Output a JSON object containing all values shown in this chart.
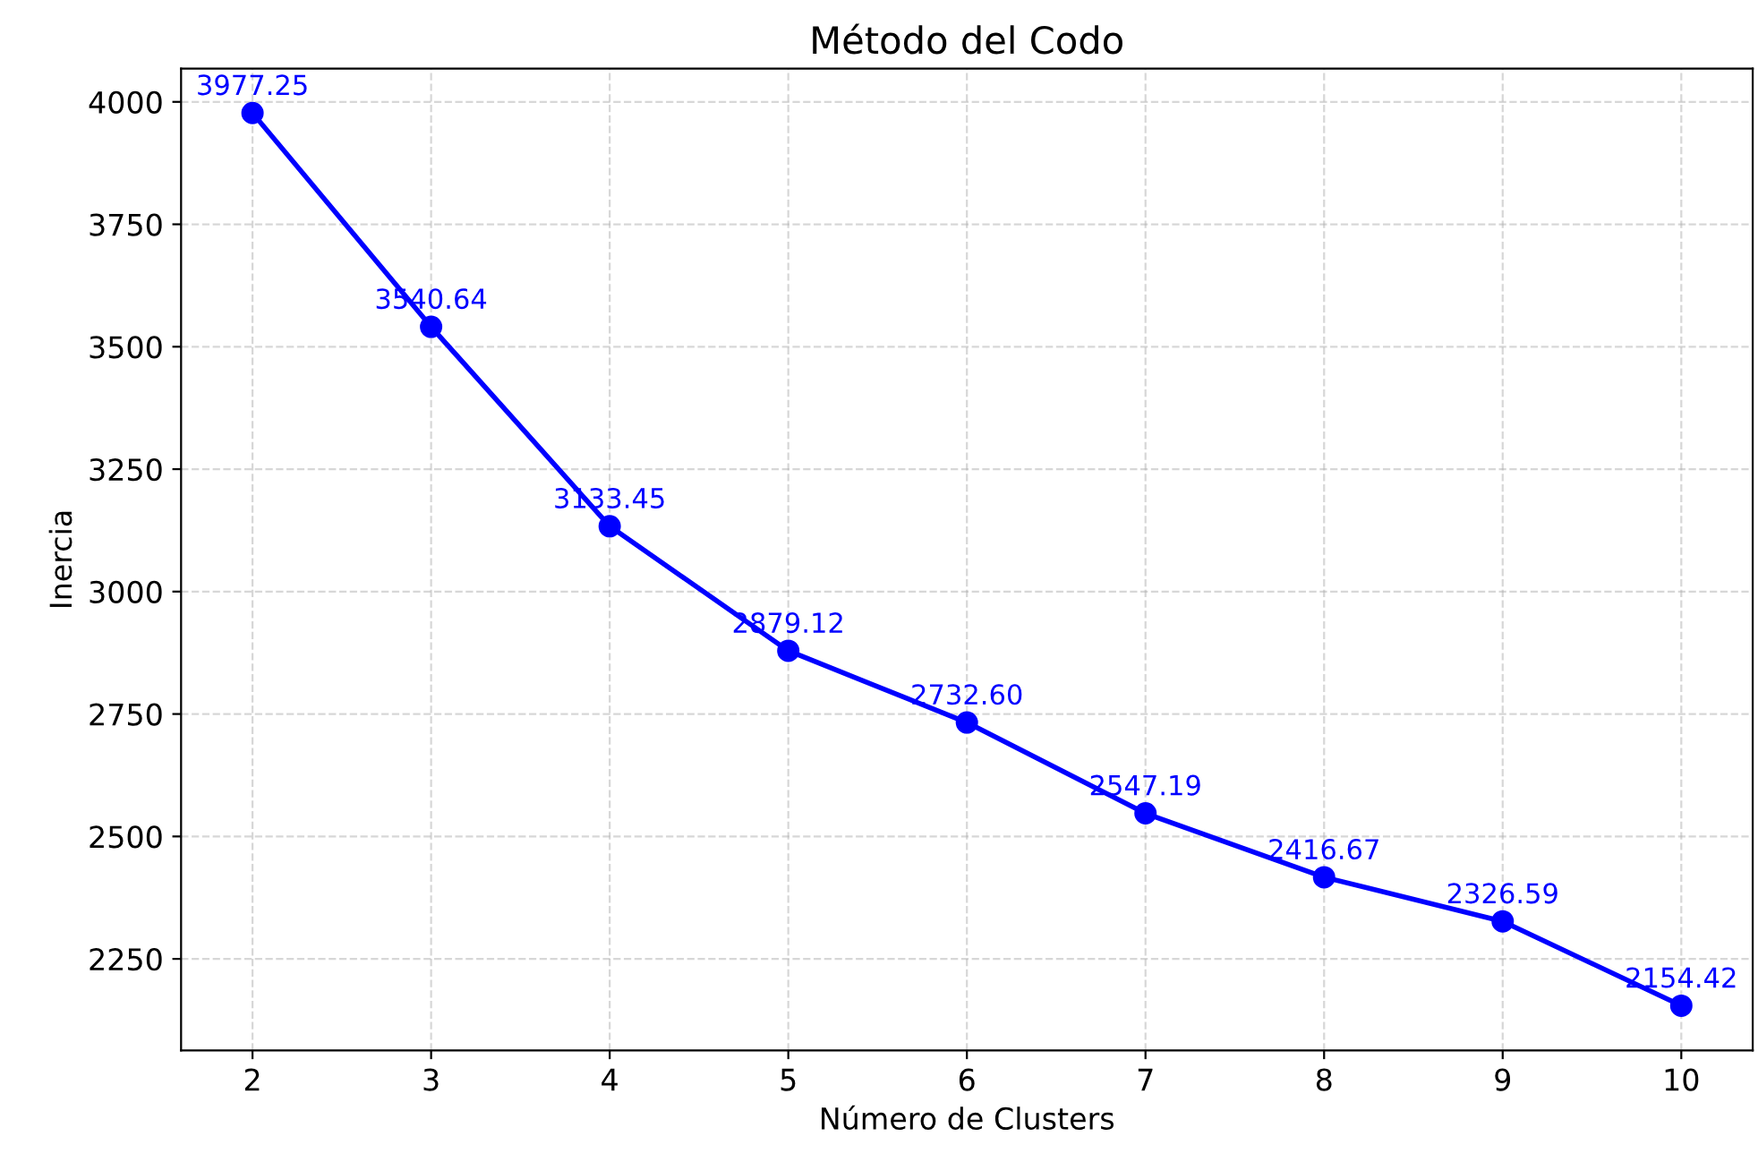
{
  "chart_data": {
    "type": "line",
    "title": "Método del Codo",
    "xlabel": "Número de Clusters",
    "ylabel": "Inercia",
    "x": [
      2,
      3,
      4,
      5,
      6,
      7,
      8,
      9,
      10
    ],
    "series": [
      {
        "color": "#0000ff",
        "values": [
          3977.25,
          3540.64,
          3133.45,
          2879.12,
          2732.6,
          2547.19,
          2416.67,
          2326.59,
          2154.42
        ],
        "value_labels": [
          "3977.25",
          "3540.64",
          "3133.45",
          "2879.12",
          "2732.60",
          "2547.19",
          "2416.67",
          "2326.59",
          "2154.42"
        ]
      }
    ],
    "xlim": [
      1.6,
      10.4
    ],
    "ylim": [
      2063,
      4068
    ],
    "xticks": [
      2,
      3,
      4,
      5,
      6,
      7,
      8,
      9,
      10
    ],
    "yticks": [
      2250,
      2500,
      2750,
      3000,
      3250,
      3500,
      3750,
      4000
    ],
    "grid": true,
    "marker": "circle",
    "line_style": "solid"
  }
}
